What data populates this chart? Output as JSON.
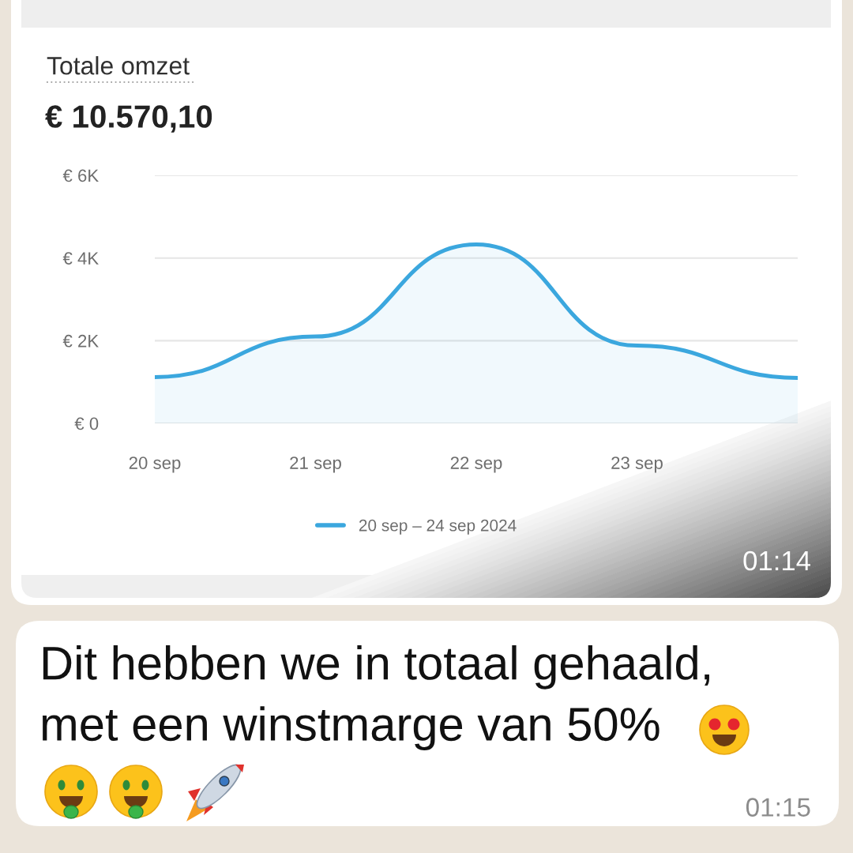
{
  "chart_data": {
    "type": "area",
    "title": "Totale omzet",
    "subtitle": "€ 10.570,10",
    "categories": [
      "20 sep",
      "21 sep",
      "22 sep",
      "23 sep",
      null
    ],
    "series": [
      {
        "name": "20 sep – 24 sep 2024",
        "color": "#3ba7de",
        "values": [
          1120,
          2100,
          4330,
          1880,
          1100
        ]
      }
    ],
    "ylim": [
      0,
      6000
    ],
    "yticks": [
      {
        "value": 0,
        "label": "€ 0"
      },
      {
        "value": 2000,
        "label": "€ 2K"
      },
      {
        "value": 4000,
        "label": "€ 4K"
      },
      {
        "value": 6000,
        "label": "€ 6K"
      }
    ],
    "grid": "y",
    "legend": "bottom",
    "annotations": [
      "01:14",
      "Dit hebben we in totaal gehaald,\nmet een winstmarge van 50%",
      "01:15"
    ]
  }
}
